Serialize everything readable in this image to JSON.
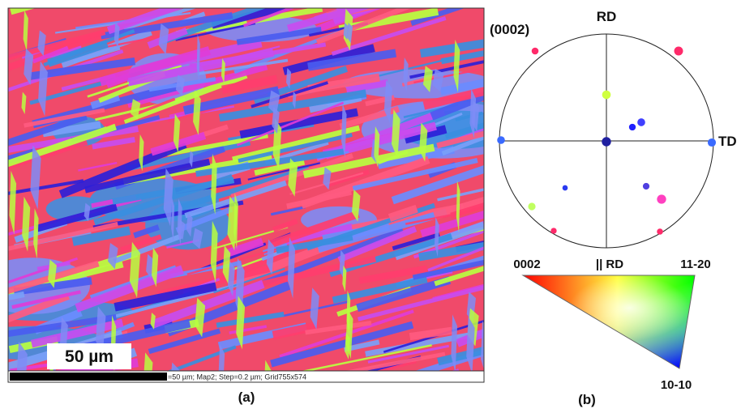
{
  "panel_a": {
    "scale_label": "50 µm",
    "info": "=50 µm; Map2; Step=0.2 µm; Grid755x574",
    "caption": "(a)"
  },
  "panel_b": {
    "plane": "(0002)",
    "top_axis": "RD",
    "right_axis": "TD",
    "key": {
      "corner_left": "0002",
      "direction": "|| RD",
      "corner_right": "11-20",
      "corner_bottom": "10-10"
    },
    "caption": "(b)"
  }
}
